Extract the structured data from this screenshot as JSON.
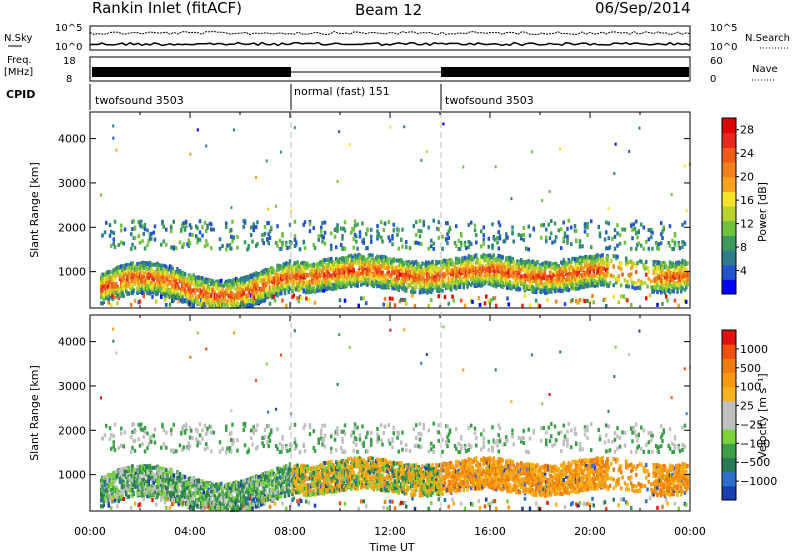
{
  "header": {
    "title": "Rankin Inlet (fitACF)",
    "beam": "Beam 12",
    "date": "06/Sep/2014"
  },
  "top_panels": {
    "nsky_label": "N.Sky",
    "nsearch_label": "N.Search",
    "nsky_ticks": [
      "10^5",
      "10^0"
    ],
    "nsearch_ticks": [
      "10^5",
      "10^0"
    ],
    "freq_label": "Freq.",
    "freq_unit": "[MHz]",
    "freq_ticks": [
      "18",
      "8"
    ],
    "nave_label": "Nave",
    "nave_ticks": [
      "60",
      "0"
    ],
    "cpid_label": "CPID",
    "cpid_segments": [
      {
        "label": "twofsound 3503",
        "start": 0,
        "end": 8
      },
      {
        "label": "normal (fast) 151",
        "start": 8,
        "end": 14
      },
      {
        "label": "twofsound 3503",
        "start": 14,
        "end": 24
      }
    ]
  },
  "chart_data": [
    {
      "type": "heatmap",
      "title": "",
      "xlabel": "Time UT",
      "ylabel": "Slant Range [km]",
      "xlim": [
        0,
        24
      ],
      "ylim": [
        180,
        4600
      ],
      "x_ticks": [
        "00:00",
        "04:00",
        "08:00",
        "12:00",
        "16:00",
        "20:00",
        "00:00"
      ],
      "y_ticks": [
        1000,
        2000,
        3000,
        4000
      ],
      "colorbar": {
        "label": "Power [dB]",
        "ticks": [
          4,
          8,
          12,
          16,
          20,
          24,
          28
        ],
        "range": [
          0,
          30
        ],
        "colors": [
          "#0000ff",
          "#2255cc",
          "#2e7d8c",
          "#3c9a5a",
          "#6fc23c",
          "#b8d22e",
          "#f5e12a",
          "#f6a21e",
          "#f0801e",
          "#ee5a1a",
          "#e8281a",
          "#e00000"
        ]
      },
      "scatter_bands": [
        {
          "t0": 0.5,
          "t1": 8.0,
          "r0": 600,
          "r1": 1300,
          "level": "high"
        },
        {
          "t0": 8.0,
          "t1": 14.0,
          "r0": 750,
          "r1": 1200,
          "level": "high"
        },
        {
          "t0": 14.0,
          "t1": 20.5,
          "r0": 750,
          "r1": 1200,
          "level": "high"
        },
        {
          "t0": 0.5,
          "t1": 24.0,
          "r0": 1500,
          "r1": 2200,
          "level": "low"
        }
      ]
    },
    {
      "type": "heatmap",
      "title": "",
      "xlabel": "Time UT",
      "ylabel": "Slant Range [km]",
      "xlim": [
        0,
        24
      ],
      "ylim": [
        180,
        4600
      ],
      "x_ticks": [
        "00:00",
        "04:00",
        "08:00",
        "12:00",
        "16:00",
        "20:00",
        "00:00"
      ],
      "y_ticks": [
        1000,
        2000,
        3000,
        4000
      ],
      "colorbar": {
        "label": "Velocity [m s⁻¹]",
        "ticks": [
          "1000",
          "500",
          "100",
          "25",
          "−25",
          "−100",
          "−500",
          "−1000"
        ],
        "colors": [
          "#1c3fb0",
          "#2f6fcc",
          "#2a7a55",
          "#3d9e4a",
          "#7bd23a",
          "#c0c0c0",
          "#c0c0c0",
          "#f5b21a",
          "#f59a10",
          "#f07b10",
          "#ef5010",
          "#e01010"
        ]
      }
    }
  ]
}
